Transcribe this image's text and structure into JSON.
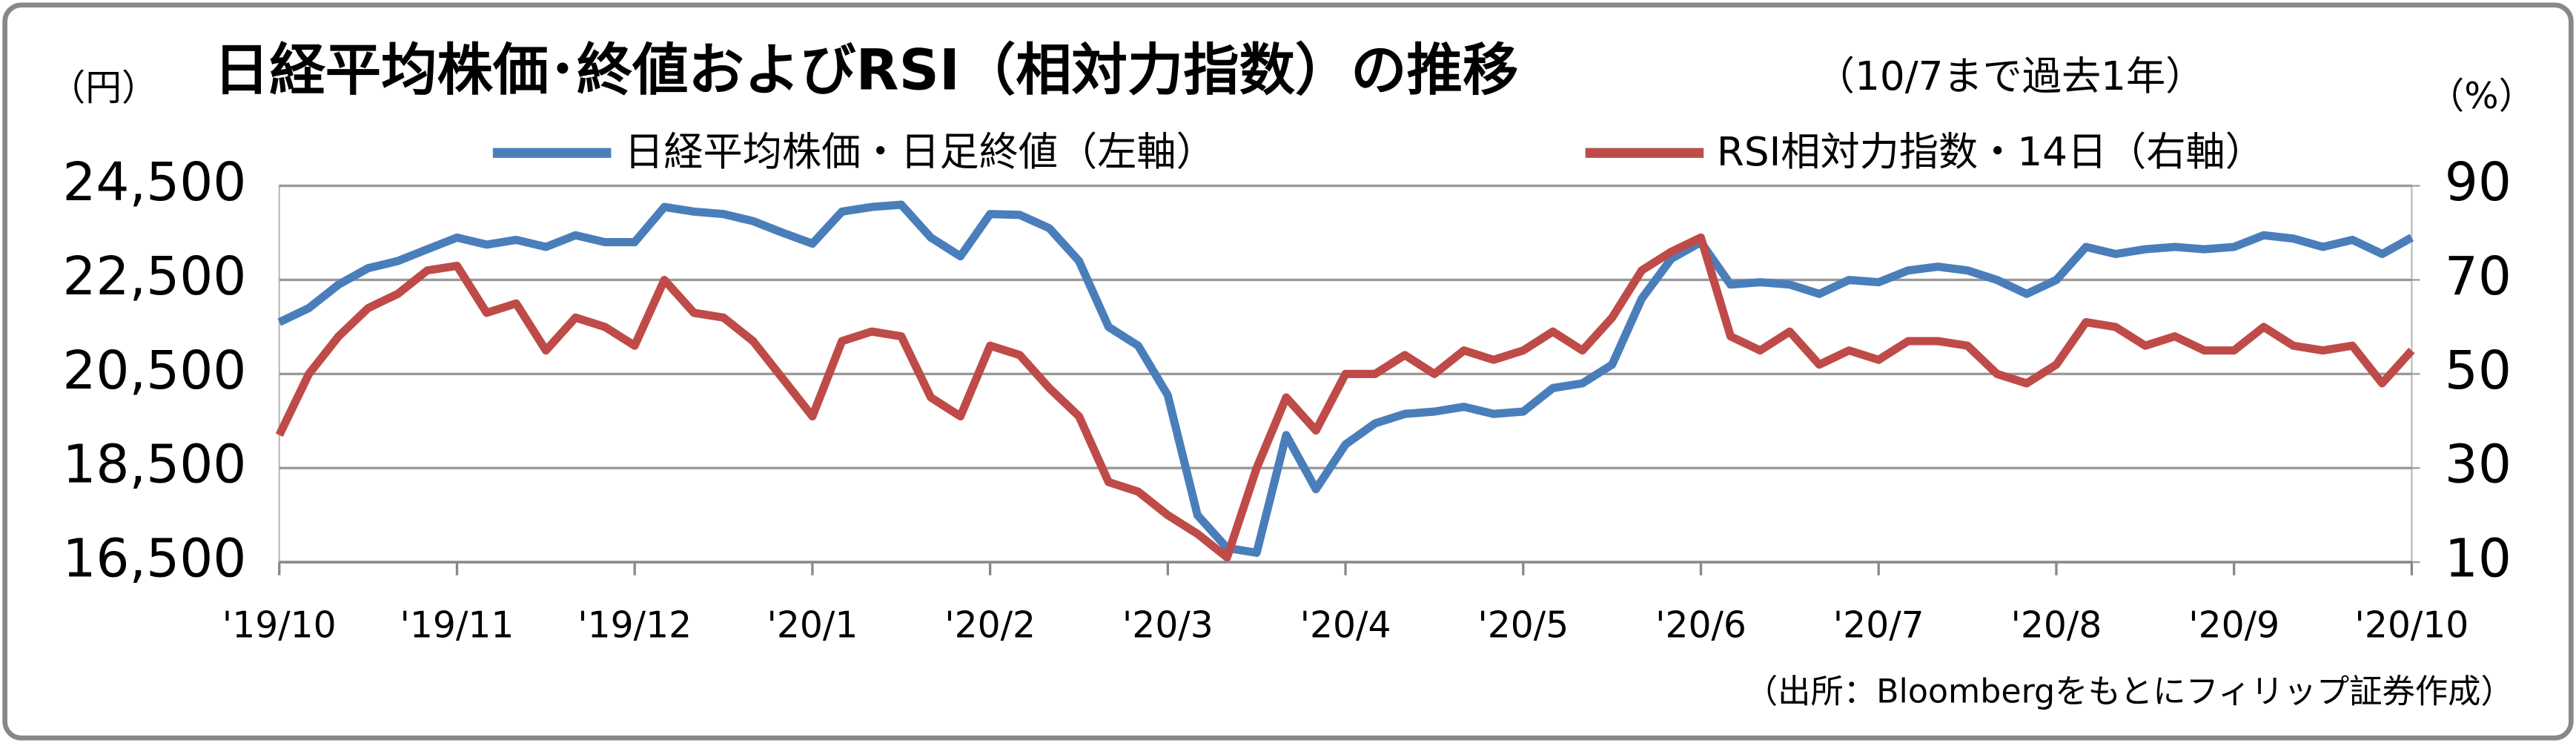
{
  "chart_data": {
    "type": "line",
    "title": "日経平均株価･終値およびRSI（相対力指数）の推移",
    "subtitle": "（10/7まで過去1年）",
    "y_label": "（円）",
    "y2_label": "（%）",
    "source": "（出所：Bloombergをもとにフィリップ証券作成）",
    "categories": [
      "'19/10",
      null,
      null,
      null,
      null,
      null,
      "'19/11",
      null,
      null,
      null,
      null,
      null,
      "'19/12",
      null,
      null,
      null,
      null,
      null,
      "'20/1",
      null,
      null,
      null,
      null,
      null,
      "'20/2",
      null,
      null,
      null,
      null,
      null,
      "'20/3",
      null,
      null,
      null,
      null,
      null,
      "'20/4",
      null,
      null,
      null,
      null,
      null,
      "'20/5",
      null,
      null,
      null,
      null,
      null,
      "'20/6",
      null,
      null,
      null,
      null,
      null,
      "'20/7",
      null,
      null,
      null,
      null,
      null,
      "'20/8",
      null,
      null,
      null,
      null,
      null,
      "'20/9",
      null,
      null,
      null,
      null,
      null,
      "'20/10"
    ],
    "series": [
      {
        "name": "日経平均株価・日足終値（左軸）",
        "color": "#4a7ebb",
        "values": [
          21600,
          21900,
          22400,
          22750,
          22900,
          23150,
          23400,
          23250,
          23350,
          23200,
          23450,
          23300,
          23300,
          24050,
          23950,
          23900,
          23750,
          23500,
          23270,
          23950,
          24050,
          24100,
          23400,
          23000,
          23900,
          23880,
          23600,
          22900,
          21500,
          21100,
          20050,
          17500,
          16800,
          16700,
          19200,
          18050,
          19000,
          19450,
          19650,
          19700,
          19800,
          19650,
          19700,
          20200,
          20300,
          20700,
          22100,
          22950,
          23300,
          22400,
          22450,
          22400,
          22200,
          22500,
          22450,
          22700,
          22780,
          22700,
          22500,
          22200,
          22500,
          23200,
          23050,
          23150,
          23200,
          23150,
          23200,
          23450,
          23380,
          23200,
          23350,
          23050,
          23400
        ]
      },
      {
        "name": "RSI相対力指数・14日（右軸）",
        "color": "#be4b48",
        "axis": "y2",
        "values": [
          37,
          50,
          58,
          64,
          67,
          72,
          73,
          63,
          65,
          55,
          62,
          60,
          56,
          70,
          63,
          62,
          57,
          49,
          41,
          57,
          59,
          58,
          45,
          41,
          56,
          54,
          47,
          41,
          27,
          25,
          20,
          16,
          11,
          30,
          45,
          38,
          50,
          50,
          54,
          50,
          55,
          53,
          55,
          59,
          55,
          62,
          72,
          76,
          79,
          58,
          55,
          59,
          52,
          55,
          53,
          57,
          57,
          56,
          50,
          48,
          52,
          61,
          60,
          56,
          58,
          55,
          55,
          60,
          56,
          55,
          56,
          48,
          55
        ]
      }
    ],
    "ylim": [
      16500,
      24500
    ],
    "yticks": [
      {
        "value": 16500,
        "label": "16,500"
      },
      {
        "value": 18500,
        "label": "18,500"
      },
      {
        "value": 20500,
        "label": "20,500"
      },
      {
        "value": 22500,
        "label": "22,500"
      },
      {
        "value": 24500,
        "label": "24,500"
      }
    ],
    "y2lim": [
      10,
      90
    ],
    "y2ticks": [
      10,
      30,
      50,
      70,
      90
    ],
    "grid": true
  }
}
